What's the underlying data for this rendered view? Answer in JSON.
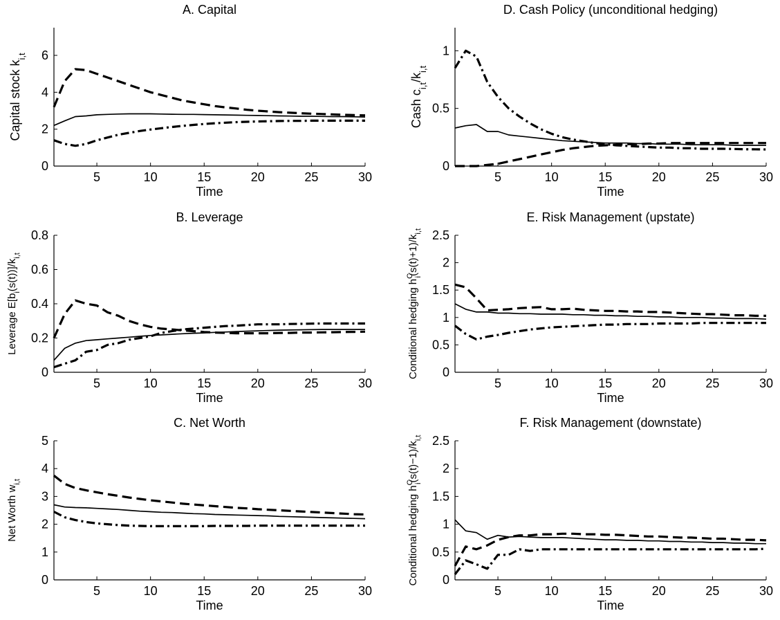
{
  "chart_data": [
    {
      "id": "A",
      "type": "line",
      "title": "A. Capital",
      "xlabel": "Time",
      "ylabel": "Capital stock k",
      "ylabel_sub": "i,t",
      "xlim": [
        1,
        30
      ],
      "ylim": [
        0,
        7.5
      ],
      "xticks": [
        5,
        10,
        15,
        20,
        25,
        30
      ],
      "yticks": [
        0,
        2,
        4,
        6
      ],
      "ytick_labels": [
        "0",
        "2",
        "4",
        "6"
      ],
      "x": [
        1,
        2,
        3,
        4,
        5,
        6,
        7,
        8,
        9,
        10,
        11,
        12,
        13,
        14,
        15,
        16,
        17,
        18,
        19,
        20,
        21,
        22,
        23,
        24,
        25,
        26,
        27,
        28,
        29,
        30
      ],
      "series": [
        {
          "style": "solid",
          "values": [
            2.2,
            2.45,
            2.68,
            2.72,
            2.78,
            2.8,
            2.82,
            2.83,
            2.83,
            2.83,
            2.82,
            2.81,
            2.8,
            2.8,
            2.79,
            2.78,
            2.77,
            2.76,
            2.75,
            2.74,
            2.73,
            2.72,
            2.71,
            2.7,
            2.7,
            2.69,
            2.68,
            2.68,
            2.67,
            2.66
          ]
        },
        {
          "style": "dashed",
          "values": [
            3.2,
            4.6,
            5.25,
            5.2,
            5.0,
            4.8,
            4.6,
            4.4,
            4.2,
            4.0,
            3.85,
            3.7,
            3.55,
            3.45,
            3.35,
            3.25,
            3.18,
            3.12,
            3.05,
            3.0,
            2.96,
            2.92,
            2.89,
            2.86,
            2.84,
            2.82,
            2.8,
            2.78,
            2.76,
            2.75
          ]
        },
        {
          "style": "dashdot",
          "values": [
            1.4,
            1.2,
            1.1,
            1.2,
            1.4,
            1.55,
            1.7,
            1.8,
            1.9,
            1.98,
            2.05,
            2.12,
            2.18,
            2.23,
            2.28,
            2.32,
            2.35,
            2.38,
            2.4,
            2.42,
            2.43,
            2.44,
            2.45,
            2.45,
            2.46,
            2.46,
            2.46,
            2.46,
            2.46,
            2.46
          ]
        }
      ]
    },
    {
      "id": "B",
      "type": "line",
      "title": "B. Leverage",
      "xlabel": "Time",
      "ylabel": "Leverage E[b",
      "ylabel_sub": "i",
      "ylabel_rest": "(s(t))]/k",
      "ylabel_sub2": "i,t",
      "xlim": [
        1,
        30
      ],
      "ylim": [
        0,
        0.8
      ],
      "xticks": [
        5,
        10,
        15,
        20,
        25,
        30
      ],
      "yticks": [
        0,
        0.2,
        0.4,
        0.6,
        0.8
      ],
      "ytick_labels": [
        "0",
        "0.2",
        "0.4",
        "0.6",
        "0.8"
      ],
      "x": [
        1,
        2,
        3,
        4,
        5,
        6,
        7,
        8,
        9,
        10,
        11,
        12,
        13,
        14,
        15,
        16,
        17,
        18,
        19,
        20,
        21,
        22,
        23,
        24,
        25,
        26,
        27,
        28,
        29,
        30
      ],
      "series": [
        {
          "style": "solid",
          "values": [
            0.07,
            0.14,
            0.17,
            0.185,
            0.19,
            0.195,
            0.2,
            0.205,
            0.21,
            0.215,
            0.218,
            0.222,
            0.225,
            0.228,
            0.23,
            0.233,
            0.235,
            0.238,
            0.24,
            0.242,
            0.244,
            0.246,
            0.247,
            0.248,
            0.249,
            0.25,
            0.25,
            0.25,
            0.25,
            0.25
          ]
        },
        {
          "style": "dashed",
          "values": [
            0.2,
            0.34,
            0.42,
            0.4,
            0.39,
            0.35,
            0.33,
            0.3,
            0.28,
            0.265,
            0.255,
            0.25,
            0.245,
            0.24,
            0.235,
            0.232,
            0.23,
            0.228,
            0.228,
            0.228,
            0.228,
            0.23,
            0.23,
            0.232,
            0.232,
            0.233,
            0.234,
            0.235,
            0.236,
            0.237
          ]
        },
        {
          "style": "dashdot",
          "values": [
            0.03,
            0.05,
            0.07,
            0.12,
            0.13,
            0.16,
            0.17,
            0.19,
            0.2,
            0.21,
            0.23,
            0.24,
            0.25,
            0.255,
            0.26,
            0.265,
            0.27,
            0.272,
            0.276,
            0.28,
            0.28,
            0.28,
            0.282,
            0.283,
            0.284,
            0.285,
            0.285,
            0.285,
            0.285,
            0.285
          ]
        }
      ]
    },
    {
      "id": "C",
      "type": "line",
      "title": "C. Net Worth",
      "xlabel": "Time",
      "ylabel": "Net Worth w",
      "ylabel_sub": "i,t",
      "xlim": [
        1,
        30
      ],
      "ylim": [
        0,
        5
      ],
      "xticks": [
        5,
        10,
        15,
        20,
        25,
        30
      ],
      "yticks": [
        0,
        1,
        2,
        3,
        4,
        5
      ],
      "ytick_labels": [
        "0",
        "1",
        "2",
        "3",
        "4",
        "5"
      ],
      "x": [
        1,
        2,
        3,
        4,
        5,
        6,
        7,
        8,
        9,
        10,
        11,
        12,
        13,
        14,
        15,
        16,
        17,
        18,
        19,
        20,
        21,
        22,
        23,
        24,
        25,
        26,
        27,
        28,
        29,
        30
      ],
      "series": [
        {
          "style": "solid",
          "values": [
            2.7,
            2.62,
            2.6,
            2.59,
            2.57,
            2.55,
            2.53,
            2.5,
            2.47,
            2.45,
            2.43,
            2.42,
            2.4,
            2.38,
            2.37,
            2.35,
            2.34,
            2.33,
            2.32,
            2.31,
            2.3,
            2.28,
            2.27,
            2.26,
            2.25,
            2.24,
            2.23,
            2.22,
            2.21,
            2.2
          ]
        },
        {
          "style": "dashed",
          "values": [
            3.75,
            3.45,
            3.3,
            3.22,
            3.15,
            3.08,
            3.02,
            2.96,
            2.91,
            2.86,
            2.82,
            2.78,
            2.74,
            2.71,
            2.68,
            2.65,
            2.62,
            2.59,
            2.57,
            2.54,
            2.52,
            2.5,
            2.48,
            2.46,
            2.44,
            2.42,
            2.4,
            2.38,
            2.36,
            2.35
          ]
        },
        {
          "style": "dashdot",
          "values": [
            2.45,
            2.25,
            2.15,
            2.08,
            2.03,
            2.0,
            1.97,
            1.95,
            1.94,
            1.93,
            1.93,
            1.93,
            1.93,
            1.93,
            1.93,
            1.94,
            1.94,
            1.94,
            1.94,
            1.95,
            1.95,
            1.95,
            1.95,
            1.95,
            1.95,
            1.95,
            1.95,
            1.95,
            1.95,
            1.95
          ]
        }
      ]
    },
    {
      "id": "D",
      "type": "line",
      "title": "D. Cash Policy (unconditional hedging)",
      "xlabel": "Time",
      "ylabel": "Cash c",
      "ylabel_sub": "i,t",
      "ylabel_rest": "/k",
      "ylabel_sub2": "i,t",
      "xlim": [
        1,
        30
      ],
      "ylim": [
        0,
        1.2
      ],
      "xticks": [
        5,
        10,
        15,
        20,
        25,
        30
      ],
      "yticks": [
        0,
        0.5,
        1
      ],
      "ytick_labels": [
        "0",
        "0.5",
        "1"
      ],
      "x": [
        1,
        2,
        3,
        4,
        5,
        6,
        7,
        8,
        9,
        10,
        11,
        12,
        13,
        14,
        15,
        16,
        17,
        18,
        19,
        20,
        21,
        22,
        23,
        24,
        25,
        26,
        27,
        28,
        29,
        30
      ],
      "series": [
        {
          "style": "solid",
          "values": [
            0.33,
            0.35,
            0.36,
            0.3,
            0.3,
            0.27,
            0.26,
            0.25,
            0.24,
            0.23,
            0.22,
            0.215,
            0.21,
            0.205,
            0.2,
            0.2,
            0.2,
            0.195,
            0.195,
            0.19,
            0.19,
            0.19,
            0.185,
            0.185,
            0.185,
            0.185,
            0.18,
            0.18,
            0.18,
            0.18
          ]
        },
        {
          "style": "dashed",
          "values": [
            0.0,
            0.0,
            0.0,
            0.01,
            0.02,
            0.04,
            0.06,
            0.08,
            0.1,
            0.12,
            0.14,
            0.155,
            0.165,
            0.175,
            0.18,
            0.185,
            0.19,
            0.19,
            0.195,
            0.195,
            0.2,
            0.2,
            0.2,
            0.2,
            0.2,
            0.2,
            0.2,
            0.2,
            0.2,
            0.2
          ]
        },
        {
          "style": "dashdot",
          "values": [
            0.85,
            1.0,
            0.95,
            0.73,
            0.6,
            0.5,
            0.43,
            0.37,
            0.32,
            0.28,
            0.25,
            0.23,
            0.215,
            0.2,
            0.19,
            0.18,
            0.175,
            0.17,
            0.165,
            0.16,
            0.16,
            0.155,
            0.155,
            0.15,
            0.15,
            0.15,
            0.148,
            0.146,
            0.145,
            0.144
          ]
        }
      ]
    },
    {
      "id": "E",
      "type": "line",
      "title": "E. Risk Management (upstate)",
      "xlabel": "Time",
      "ylabel": "Conditional hedging h",
      "ylabel_sup": "C",
      "ylabel_sub": "i",
      "ylabel_rest": "(s(t)+1)/k",
      "ylabel_sub2": "i,t",
      "xlim": [
        1,
        30
      ],
      "ylim": [
        0,
        2.5
      ],
      "xticks": [
        5,
        10,
        15,
        20,
        25,
        30
      ],
      "yticks": [
        0,
        0.5,
        1,
        1.5,
        2,
        2.5
      ],
      "ytick_labels": [
        "0",
        "0.5",
        "1",
        "1.5",
        "2",
        "2.5"
      ],
      "x": [
        1,
        2,
        3,
        4,
        5,
        6,
        7,
        8,
        9,
        10,
        11,
        12,
        13,
        14,
        15,
        16,
        17,
        18,
        19,
        20,
        21,
        22,
        23,
        24,
        25,
        26,
        27,
        28,
        29,
        30
      ],
      "series": [
        {
          "style": "solid",
          "values": [
            1.25,
            1.15,
            1.1,
            1.1,
            1.08,
            1.08,
            1.07,
            1.07,
            1.06,
            1.06,
            1.06,
            1.05,
            1.05,
            1.04,
            1.04,
            1.03,
            1.03,
            1.02,
            1.02,
            1.01,
            1.01,
            1.0,
            1.0,
            1.0,
            0.99,
            0.99,
            0.98,
            0.98,
            0.98,
            0.97
          ]
        },
        {
          "style": "dashed",
          "values": [
            1.6,
            1.55,
            1.35,
            1.13,
            1.14,
            1.15,
            1.17,
            1.18,
            1.19,
            1.15,
            1.15,
            1.16,
            1.14,
            1.13,
            1.12,
            1.12,
            1.11,
            1.11,
            1.1,
            1.1,
            1.09,
            1.08,
            1.07,
            1.06,
            1.06,
            1.05,
            1.04,
            1.04,
            1.03,
            1.03
          ]
        },
        {
          "style": "dashdot",
          "values": [
            0.85,
            0.7,
            0.6,
            0.65,
            0.68,
            0.72,
            0.75,
            0.78,
            0.8,
            0.82,
            0.83,
            0.84,
            0.85,
            0.86,
            0.87,
            0.87,
            0.88,
            0.88,
            0.88,
            0.89,
            0.89,
            0.89,
            0.89,
            0.9,
            0.9,
            0.9,
            0.9,
            0.9,
            0.9,
            0.9
          ]
        }
      ]
    },
    {
      "id": "F",
      "type": "line",
      "title": "F. Risk Management (downstate)",
      "xlabel": "Time",
      "ylabel": "Conditional hedging h",
      "ylabel_sup": "C",
      "ylabel_sub": "i",
      "ylabel_rest": "(s(t)−1)/k",
      "ylabel_sub2": "i,t",
      "xlim": [
        1,
        30
      ],
      "ylim": [
        0,
        2.5
      ],
      "xticks": [
        5,
        10,
        15,
        20,
        25,
        30
      ],
      "yticks": [
        0,
        0.5,
        1,
        1.5,
        2,
        2.5
      ],
      "ytick_labels": [
        "0",
        "0.5",
        "1",
        "1.5",
        "2",
        "2.5"
      ],
      "x": [
        1,
        2,
        3,
        4,
        5,
        6,
        7,
        8,
        9,
        10,
        11,
        12,
        13,
        14,
        15,
        16,
        17,
        18,
        19,
        20,
        21,
        22,
        23,
        24,
        25,
        26,
        27,
        28,
        29,
        30
      ],
      "series": [
        {
          "style": "solid",
          "values": [
            1.08,
            0.88,
            0.85,
            0.73,
            0.8,
            0.77,
            0.78,
            0.77,
            0.76,
            0.76,
            0.76,
            0.75,
            0.74,
            0.73,
            0.72,
            0.72,
            0.71,
            0.71,
            0.7,
            0.7,
            0.69,
            0.69,
            0.68,
            0.68,
            0.67,
            0.67,
            0.66,
            0.66,
            0.65,
            0.65
          ]
        },
        {
          "style": "dashed",
          "values": [
            0.25,
            0.6,
            0.55,
            0.62,
            0.72,
            0.77,
            0.8,
            0.8,
            0.82,
            0.82,
            0.83,
            0.83,
            0.82,
            0.82,
            0.81,
            0.81,
            0.8,
            0.79,
            0.78,
            0.78,
            0.77,
            0.76,
            0.76,
            0.75,
            0.74,
            0.74,
            0.73,
            0.72,
            0.72,
            0.71
          ]
        },
        {
          "style": "dashdot",
          "values": [
            0.1,
            0.35,
            0.28,
            0.2,
            0.45,
            0.45,
            0.55,
            0.52,
            0.55,
            0.55,
            0.55,
            0.55,
            0.55,
            0.55,
            0.55,
            0.55,
            0.55,
            0.55,
            0.55,
            0.55,
            0.55,
            0.55,
            0.55,
            0.55,
            0.55,
            0.55,
            0.55,
            0.55,
            0.55,
            0.56
          ]
        }
      ]
    }
  ]
}
